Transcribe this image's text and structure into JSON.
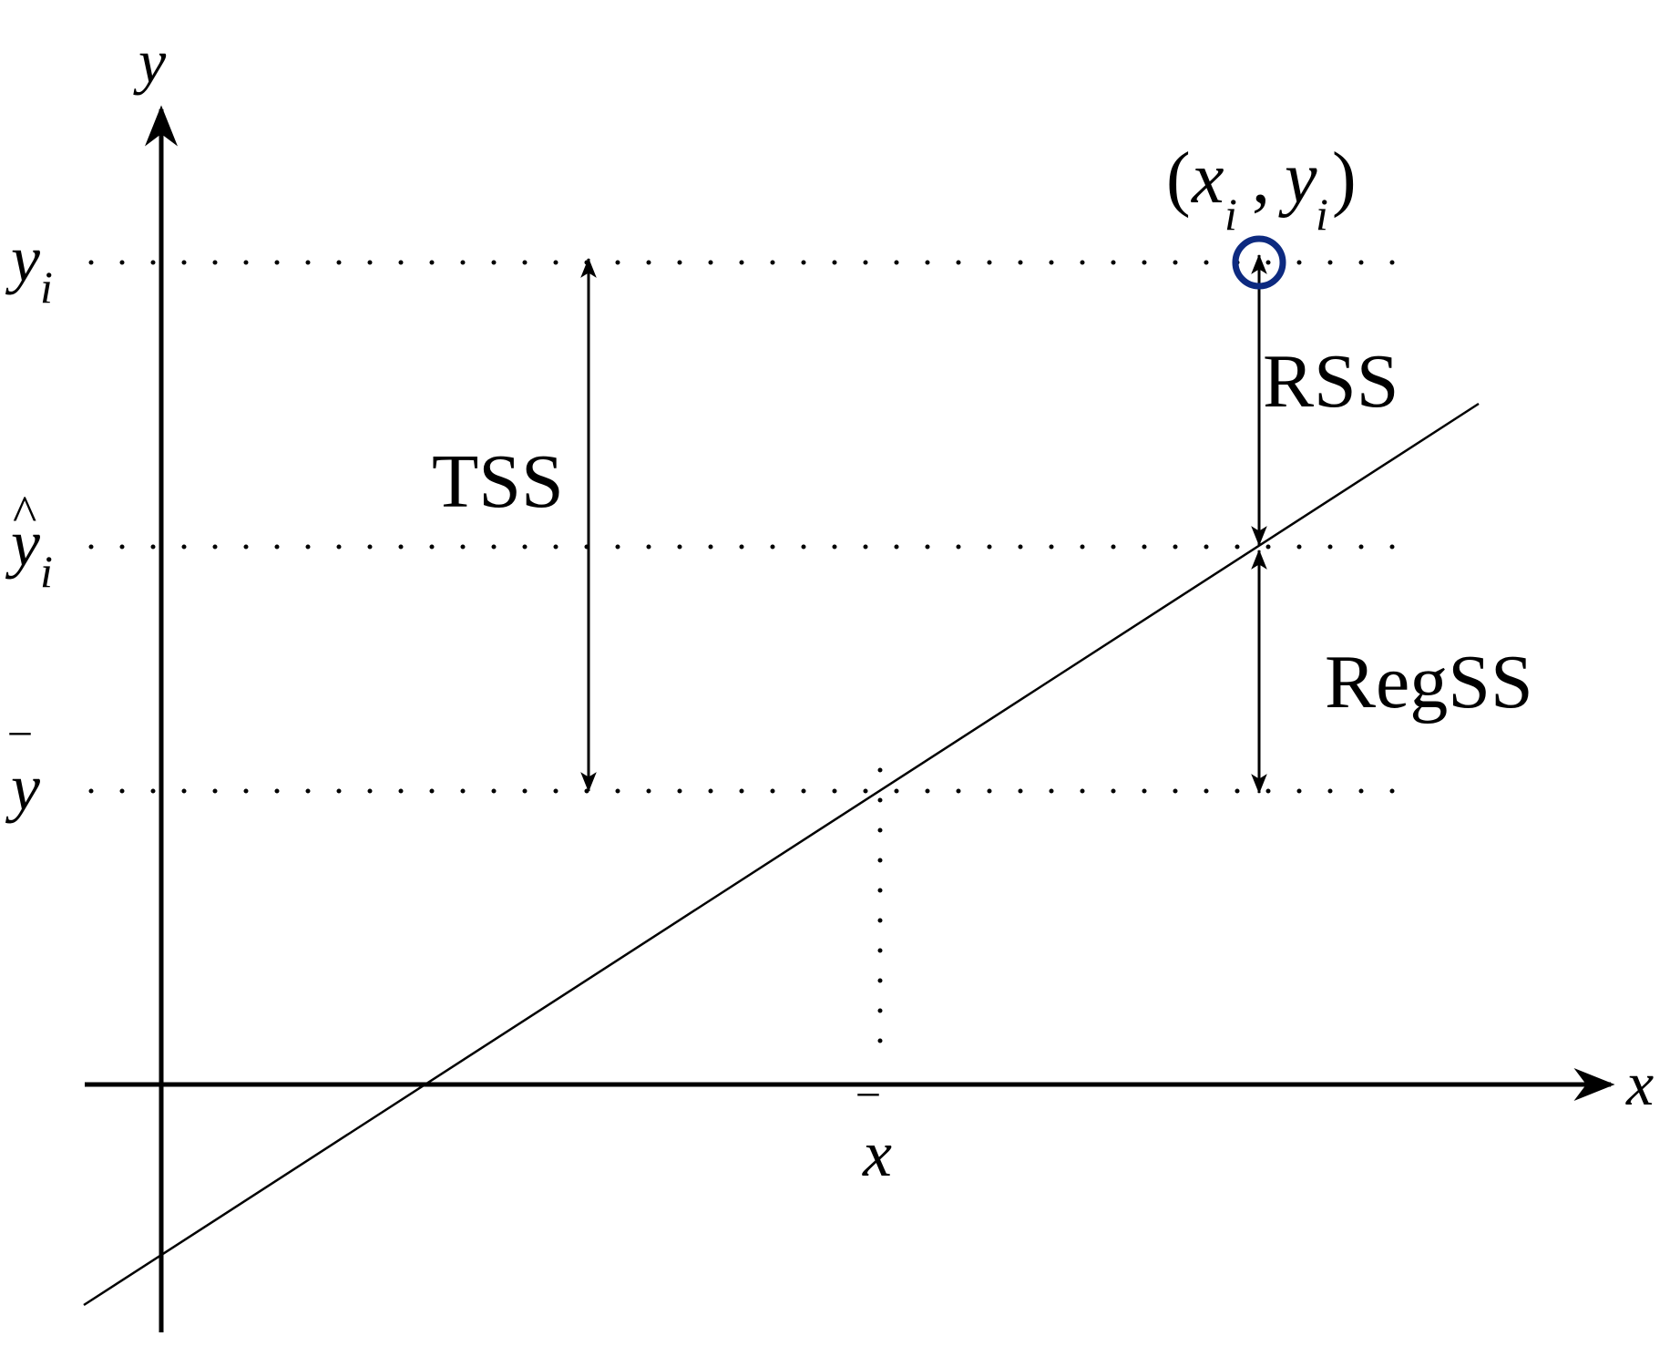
{
  "diagram": {
    "axes": {
      "x_label": "x",
      "y_label": "y"
    },
    "y_levels": {
      "observed": {
        "base": "y",
        "sub": "i"
      },
      "fitted": {
        "base": "y",
        "sub": "i",
        "accent": "^"
      },
      "mean": {
        "base": "y",
        "accent": "‾"
      }
    },
    "x_mean": {
      "base": "x",
      "accent": "‾"
    },
    "point": {
      "open": "(",
      "x": "x",
      "x_sub": "i",
      "comma": ",",
      "y": "y",
      "y_sub": "i",
      "close": ")",
      "color": "#0d2a80"
    },
    "segments": {
      "total": "TSS",
      "residual": "RSS",
      "regression": "RegSS"
    }
  }
}
